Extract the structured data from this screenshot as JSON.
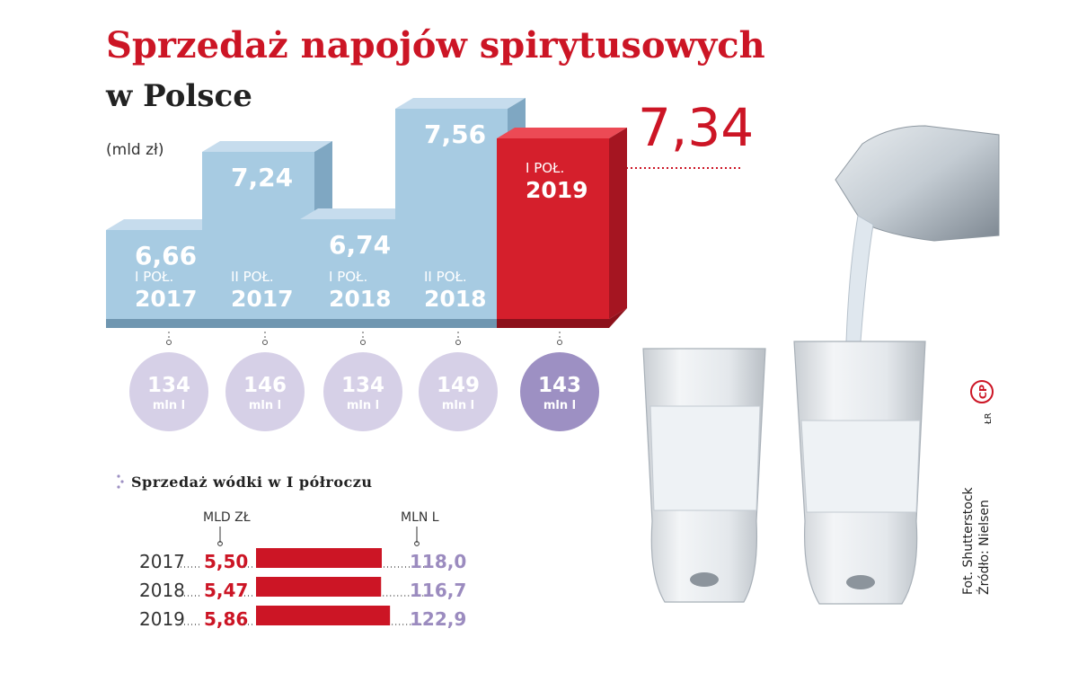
{
  "title": "Sprzedaż napojów spirytusowych",
  "subtitle": "w Polsce",
  "unit": "(mld zł)",
  "highlight_value": "7,34",
  "colors": {
    "accent": "#cc1525",
    "box_blue": "#a7cbe2",
    "box_red": "#d51f2c",
    "circle_light": "#d6d0e7",
    "circle_dark": "#9d90c3",
    "volume_text": "#9b8bbf"
  },
  "chart_data": [
    {
      "type": "bar",
      "title": "Sprzedaż napojów spirytusowych w Polsce",
      "unit": "(mld zł)",
      "categories": [
        {
          "period": "I POŁ.",
          "year": "2017"
        },
        {
          "period": "II POŁ.",
          "year": "2017"
        },
        {
          "period": "I POŁ.",
          "year": "2018"
        },
        {
          "period": "II POŁ.",
          "year": "2018"
        },
        {
          "period": "I POŁ.",
          "year": "2019"
        }
      ],
      "values": [
        "6,66",
        "7,24",
        "6,74",
        "7,56",
        "7,34"
      ],
      "values_numeric": [
        6.66,
        7.24,
        6.74,
        7.56,
        7.34
      ],
      "volumes": [
        {
          "number": "134",
          "unit": "mln l"
        },
        {
          "number": "146",
          "unit": "mln l"
        },
        {
          "number": "134",
          "unit": "mln l"
        },
        {
          "number": "149",
          "unit": "mln l"
        },
        {
          "number": "143",
          "unit": "mln l"
        }
      ],
      "highlighted_index": 4
    },
    {
      "type": "bar",
      "title": "Sprzedaż wódki w I półroczu",
      "columns": {
        "value_header": "MLD ZŁ",
        "volume_header": "MLN L"
      },
      "rows": [
        {
          "year": "2017",
          "value": "5,50",
          "value_numeric": 5.5,
          "volume": "118,0"
        },
        {
          "year": "2018",
          "value": "5,47",
          "value_numeric": 5.47,
          "volume": "116,7"
        },
        {
          "year": "2019",
          "value": "5,86",
          "value_numeric": 5.86,
          "volume": "122,9"
        }
      ]
    }
  ],
  "credits": {
    "photo": "Fot. Shutterstock",
    "source": "Źródło: Nielsen",
    "author": "ŁR",
    "logo": "CP"
  }
}
